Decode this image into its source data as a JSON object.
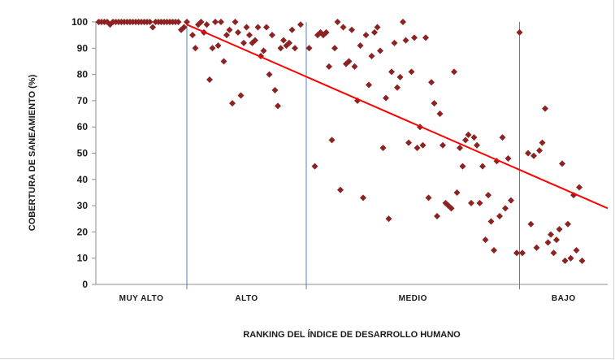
{
  "chart_data": {
    "type": "scatter",
    "title": "",
    "xlabel": "RANKING DEL ÍNDICE DE DESARROLLO HUMANO",
    "ylabel": "COBERTURA DE SANEAMIENTO (%)",
    "ylim": [
      0,
      100
    ],
    "yticks": [
      "0",
      "10",
      "20",
      "30",
      "40",
      "50",
      "60",
      "70",
      "80",
      "90",
      "100"
    ],
    "xlim": [
      0,
      180
    ],
    "groups": [
      {
        "label": "MUY ALTO",
        "start": 0,
        "end": 32
      },
      {
        "label": "ALTO",
        "start": 32,
        "end": 74
      },
      {
        "label": "MEDIO",
        "start": 74,
        "end": 149
      },
      {
        "label": "BAJO",
        "start": 149,
        "end": 180
      }
    ],
    "series": [
      {
        "color": "#8b2323",
        "points": [
          [
            1,
            100
          ],
          [
            2,
            100
          ],
          [
            3,
            100
          ],
          [
            4,
            100
          ],
          [
            5,
            99
          ],
          [
            6,
            100
          ],
          [
            7,
            100
          ],
          [
            8,
            100
          ],
          [
            9,
            100
          ],
          [
            10,
            100
          ],
          [
            11,
            100
          ],
          [
            12,
            100
          ],
          [
            13,
            100
          ],
          [
            14,
            100
          ],
          [
            15,
            100
          ],
          [
            16,
            100
          ],
          [
            17,
            100
          ],
          [
            18,
            100
          ],
          [
            19,
            100
          ],
          [
            20,
            98
          ],
          [
            21,
            100
          ],
          [
            22,
            100
          ],
          [
            23,
            100
          ],
          [
            24,
            100
          ],
          [
            25,
            100
          ],
          [
            26,
            100
          ],
          [
            27,
            100
          ],
          [
            28,
            100
          ],
          [
            29,
            100
          ],
          [
            30,
            97
          ],
          [
            31,
            98
          ],
          [
            32,
            100
          ],
          [
            34,
            95
          ],
          [
            35,
            90
          ],
          [
            36,
            99
          ],
          [
            37,
            100
          ],
          [
            38,
            96
          ],
          [
            39,
            99
          ],
          [
            40,
            78
          ],
          [
            41,
            90
          ],
          [
            42,
            100
          ],
          [
            43,
            91
          ],
          [
            44,
            100
          ],
          [
            45,
            85
          ],
          [
            46,
            95
          ],
          [
            47,
            97
          ],
          [
            48,
            69
          ],
          [
            49,
            100
          ],
          [
            50,
            96
          ],
          [
            51,
            72
          ],
          [
            52,
            92
          ],
          [
            53,
            98
          ],
          [
            54,
            95
          ],
          [
            55,
            92
          ],
          [
            56,
            93
          ],
          [
            57,
            98
          ],
          [
            58,
            87
          ],
          [
            59,
            89
          ],
          [
            60,
            98
          ],
          [
            61,
            80
          ],
          [
            62,
            95
          ],
          [
            63,
            74
          ],
          [
            64,
            68
          ],
          [
            65,
            90
          ],
          [
            66,
            93
          ],
          [
            67,
            91
          ],
          [
            68,
            92
          ],
          [
            69,
            97
          ],
          [
            70,
            90
          ],
          [
            72,
            99
          ],
          [
            75,
            90
          ],
          [
            77,
            45
          ],
          [
            78,
            95
          ],
          [
            79,
            96
          ],
          [
            80,
            95
          ],
          [
            81,
            96
          ],
          [
            82,
            83
          ],
          [
            83,
            55
          ],
          [
            84,
            90
          ],
          [
            85,
            100
          ],
          [
            86,
            36
          ],
          [
            87,
            98
          ],
          [
            88,
            84
          ],
          [
            89,
            85
          ],
          [
            90,
            97
          ],
          [
            91,
            83
          ],
          [
            92,
            70
          ],
          [
            93,
            91
          ],
          [
            94,
            33
          ],
          [
            95,
            95
          ],
          [
            96,
            76
          ],
          [
            97,
            87
          ],
          [
            98,
            96
          ],
          [
            99,
            98
          ],
          [
            100,
            89
          ],
          [
            101,
            52
          ],
          [
            102,
            71
          ],
          [
            103,
            25
          ],
          [
            104,
            81
          ],
          [
            105,
            92
          ],
          [
            106,
            75
          ],
          [
            107,
            79
          ],
          [
            108,
            100
          ],
          [
            109,
            93
          ],
          [
            110,
            54
          ],
          [
            111,
            81
          ],
          [
            112,
            94
          ],
          [
            113,
            52
          ],
          [
            114,
            60
          ],
          [
            115,
            53
          ],
          [
            116,
            94
          ],
          [
            117,
            33
          ],
          [
            118,
            77
          ],
          [
            119,
            69
          ],
          [
            120,
            26
          ],
          [
            121,
            65
          ],
          [
            122,
            53
          ],
          [
            123,
            31
          ],
          [
            124,
            30
          ],
          [
            125,
            29
          ],
          [
            126,
            81
          ],
          [
            127,
            35
          ],
          [
            128,
            52
          ],
          [
            129,
            45
          ],
          [
            130,
            55
          ],
          [
            131,
            57
          ],
          [
            132,
            31
          ],
          [
            133,
            56
          ],
          [
            134,
            53
          ],
          [
            135,
            31
          ],
          [
            136,
            45
          ],
          [
            137,
            17
          ],
          [
            138,
            34
          ],
          [
            139,
            24
          ],
          [
            140,
            13
          ],
          [
            141,
            47
          ],
          [
            142,
            26
          ],
          [
            143,
            56
          ],
          [
            144,
            29
          ],
          [
            145,
            48
          ],
          [
            146,
            32
          ],
          [
            148,
            12
          ],
          [
            149,
            96
          ],
          [
            150,
            12
          ],
          [
            152,
            50
          ],
          [
            153,
            23
          ],
          [
            154,
            49
          ],
          [
            155,
            14
          ],
          [
            156,
            51
          ],
          [
            157,
            54
          ],
          [
            158,
            67
          ],
          [
            159,
            16
          ],
          [
            160,
            19
          ],
          [
            161,
            12
          ],
          [
            162,
            17
          ],
          [
            163,
            21
          ],
          [
            164,
            46
          ],
          [
            165,
            9
          ],
          [
            166,
            23
          ],
          [
            167,
            10
          ],
          [
            168,
            34
          ],
          [
            169,
            13
          ],
          [
            170,
            37
          ],
          [
            171,
            9
          ]
        ]
      }
    ],
    "trendline": {
      "color": "#ff0000",
      "from": [
        32,
        99
      ],
      "to": [
        180,
        29
      ]
    },
    "grid": false,
    "legend": "none"
  }
}
